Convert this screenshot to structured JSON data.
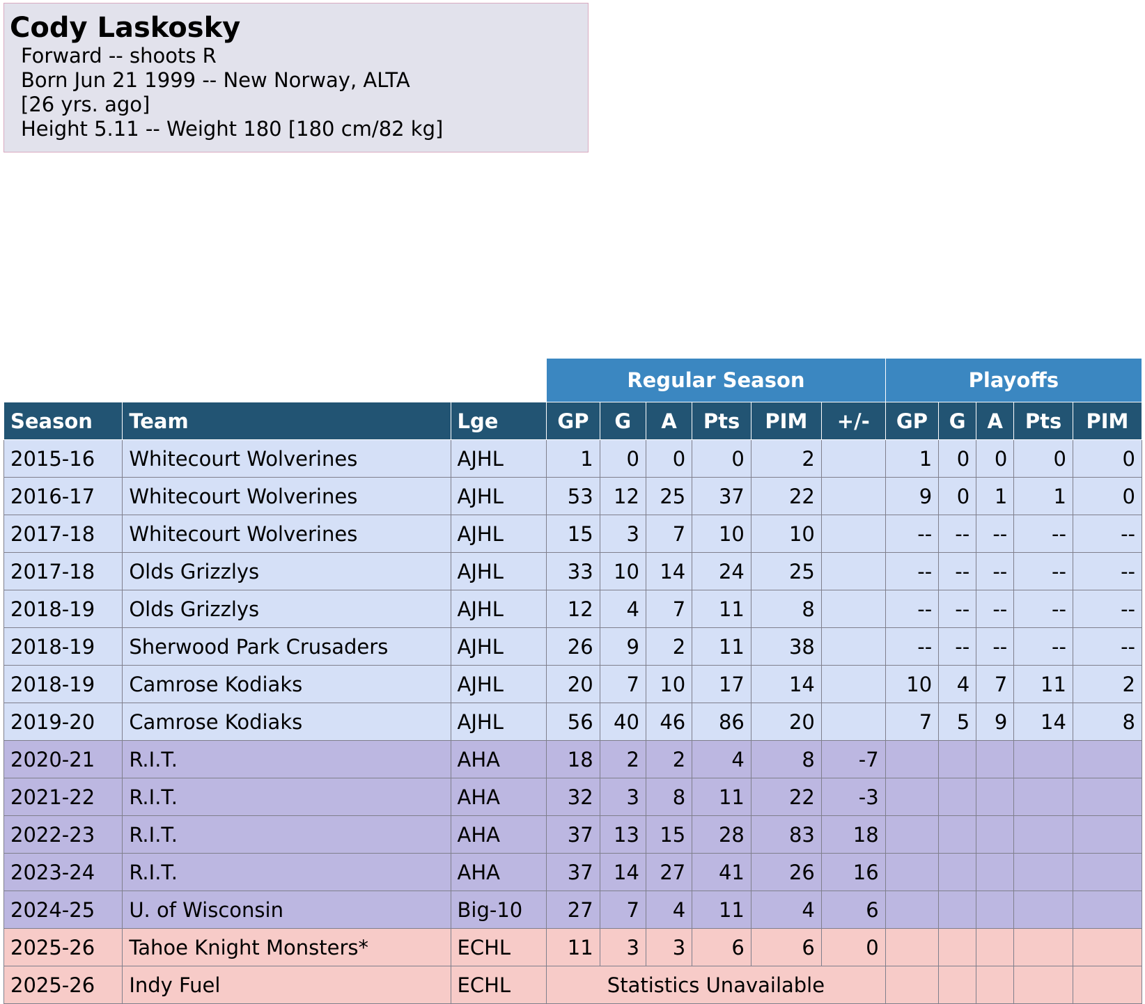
{
  "player": {
    "name": "Cody Laskosky",
    "position_line": "Forward -- shoots R",
    "born_line": "Born Jun 21 1999 -- New Norway, ALTA",
    "age_line": "[26 yrs. ago]",
    "size_line": "Height 5.11 -- Weight 180 [180 cm/82 kg]"
  },
  "table": {
    "group_headers": {
      "regular": "Regular Season",
      "playoffs": "Playoffs"
    },
    "columns": [
      "Season",
      "Team",
      "Lge",
      "GP",
      "G",
      "A",
      "Pts",
      "PIM",
      "+/-",
      "GP",
      "G",
      "A",
      "Pts",
      "PIM"
    ],
    "unavailable_text": "Statistics Unavailable",
    "rows": [
      {
        "kind": "junior",
        "season": "2015-16",
        "team": "Whitecourt Wolverines",
        "lge": "AJHL",
        "gp": "1",
        "g": "0",
        "a": "0",
        "pts": "0",
        "pim": "2",
        "pm": "",
        "pgp": "1",
        "pg": "0",
        "pa": "0",
        "ppts": "0",
        "ppim": "0"
      },
      {
        "kind": "junior",
        "season": "2016-17",
        "team": "Whitecourt Wolverines",
        "lge": "AJHL",
        "gp": "53",
        "g": "12",
        "a": "25",
        "pts": "37",
        "pim": "22",
        "pm": "",
        "pgp": "9",
        "pg": "0",
        "pa": "1",
        "ppts": "1",
        "ppim": "0"
      },
      {
        "kind": "junior",
        "season": "2017-18",
        "team": "Whitecourt Wolverines",
        "lge": "AJHL",
        "gp": "15",
        "g": "3",
        "a": "7",
        "pts": "10",
        "pim": "10",
        "pm": "",
        "pgp": "--",
        "pg": "--",
        "pa": "--",
        "ppts": "--",
        "ppim": "--"
      },
      {
        "kind": "junior",
        "season": "2017-18",
        "team": "Olds Grizzlys",
        "lge": "AJHL",
        "gp": "33",
        "g": "10",
        "a": "14",
        "pts": "24",
        "pim": "25",
        "pm": "",
        "pgp": "--",
        "pg": "--",
        "pa": "--",
        "ppts": "--",
        "ppim": "--"
      },
      {
        "kind": "junior",
        "season": "2018-19",
        "team": "Olds Grizzlys",
        "lge": "AJHL",
        "gp": "12",
        "g": "4",
        "a": "7",
        "pts": "11",
        "pim": "8",
        "pm": "",
        "pgp": "--",
        "pg": "--",
        "pa": "--",
        "ppts": "--",
        "ppim": "--"
      },
      {
        "kind": "junior",
        "season": "2018-19",
        "team": "Sherwood Park Crusaders",
        "lge": "AJHL",
        "gp": "26",
        "g": "9",
        "a": "2",
        "pts": "11",
        "pim": "38",
        "pm": "",
        "pgp": "--",
        "pg": "--",
        "pa": "--",
        "ppts": "--",
        "ppim": "--"
      },
      {
        "kind": "junior",
        "season": "2018-19",
        "team": "Camrose Kodiaks",
        "lge": "AJHL",
        "gp": "20",
        "g": "7",
        "a": "10",
        "pts": "17",
        "pim": "14",
        "pm": "",
        "pgp": "10",
        "pg": "4",
        "pa": "7",
        "ppts": "11",
        "ppim": "2"
      },
      {
        "kind": "junior",
        "season": "2019-20",
        "team": "Camrose Kodiaks",
        "lge": "AJHL",
        "gp": "56",
        "g": "40",
        "a": "46",
        "pts": "86",
        "pim": "20",
        "pm": "",
        "pgp": "7",
        "pg": "5",
        "pa": "9",
        "ppts": "14",
        "ppim": "8"
      },
      {
        "kind": "college",
        "season": "2020-21",
        "team": "R.I.T.",
        "lge": "AHA",
        "gp": "18",
        "g": "2",
        "a": "2",
        "pts": "4",
        "pim": "8",
        "pm": "-7",
        "pgp": "",
        "pg": "",
        "pa": "",
        "ppts": "",
        "ppim": ""
      },
      {
        "kind": "college",
        "season": "2021-22",
        "team": "R.I.T.",
        "lge": "AHA",
        "gp": "32",
        "g": "3",
        "a": "8",
        "pts": "11",
        "pim": "22",
        "pm": "-3",
        "pgp": "",
        "pg": "",
        "pa": "",
        "ppts": "",
        "ppim": ""
      },
      {
        "kind": "college",
        "season": "2022-23",
        "team": "R.I.T.",
        "lge": "AHA",
        "gp": "37",
        "g": "13",
        "a": "15",
        "pts": "28",
        "pim": "83",
        "pm": "18",
        "pgp": "",
        "pg": "",
        "pa": "",
        "ppts": "",
        "ppim": ""
      },
      {
        "kind": "college",
        "season": "2023-24",
        "team": "R.I.T.",
        "lge": "AHA",
        "gp": "37",
        "g": "14",
        "a": "27",
        "pts": "41",
        "pim": "26",
        "pm": "16",
        "pgp": "",
        "pg": "",
        "pa": "",
        "ppts": "",
        "ppim": ""
      },
      {
        "kind": "college",
        "season": "2024-25",
        "team": "U. of Wisconsin",
        "lge": "Big-10",
        "gp": "27",
        "g": "7",
        "a": "4",
        "pts": "11",
        "pim": "4",
        "pm": "6",
        "pgp": "",
        "pg": "",
        "pa": "",
        "ppts": "",
        "ppim": ""
      },
      {
        "kind": "pro",
        "season": "2025-26",
        "team": "Tahoe Knight Monsters*",
        "lge": "ECHL",
        "gp": "11",
        "g": "3",
        "a": "3",
        "pts": "6",
        "pim": "6",
        "pm": "0",
        "pgp": "",
        "pg": "",
        "pa": "",
        "ppts": "",
        "ppim": ""
      },
      {
        "kind": "pro",
        "season": "2025-26",
        "team": "Indy Fuel",
        "lge": "ECHL",
        "unavailable": true,
        "pgp": "",
        "pg": "",
        "pa": "",
        "ppts": "",
        "ppim": ""
      }
    ]
  },
  "colors": {
    "profile_bg": "#e2e2ec",
    "group_header_bg": "#3b87c1",
    "column_header_bg": "#225473",
    "junior_row_bg": "#d5e0f7",
    "college_row_bg": "#bcb7e1",
    "pro_row_bg": "#f7cbc8"
  }
}
